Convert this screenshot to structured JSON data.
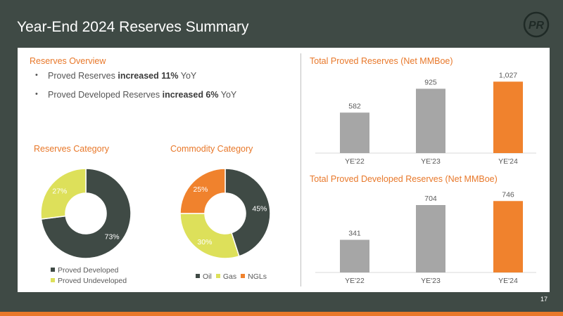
{
  "header": {
    "title": "Year-End 2024 Reserves Summary"
  },
  "logo": {
    "text": "PR",
    "icon": "pr-logo-icon"
  },
  "overview": {
    "title": "Reserves Overview",
    "bullets": [
      {
        "pre": "Proved Reserves ",
        "bold": "increased 11%",
        "post": " YoY"
      },
      {
        "pre": "Proved Developed Reserves ",
        "bold": "increased 6%",
        "post": " YoY"
      }
    ]
  },
  "page_number": "17",
  "colors": {
    "dark": "#3f4a45",
    "yellow": "#dde05a",
    "orange": "#f0822d",
    "gray": "#a6a6a6"
  },
  "chart_data": [
    {
      "type": "pie",
      "title": "Reserves Category",
      "slices": [
        {
          "name": "Proved Developed",
          "value": 73,
          "label": "73%",
          "color": "#3f4a45",
          "label_color": "#ffffff"
        },
        {
          "name": "Proved Undeveloped",
          "value": 27,
          "label": "27%",
          "color": "#dde05a",
          "label_color": "#ffffff"
        }
      ],
      "legend": "bottom"
    },
    {
      "type": "pie",
      "title": "Commodity Category",
      "slices": [
        {
          "name": "Oil",
          "value": 45,
          "label": "45%",
          "color": "#3f4a45",
          "label_color": "#ffffff"
        },
        {
          "name": "Gas",
          "value": 30,
          "label": "30%",
          "color": "#dde05a",
          "label_color": "#ffffff"
        },
        {
          "name": "NGLs",
          "value": 25,
          "label": "25%",
          "color": "#f0822d",
          "label_color": "#ffffff"
        }
      ],
      "legend": "bottom"
    },
    {
      "type": "bar",
      "title": "Total Proved Reserves (Net MMBoe)",
      "categories": [
        "YE'22",
        "YE'23",
        "YE'24"
      ],
      "values": [
        582,
        925,
        1027
      ],
      "data_labels": [
        "582",
        "925",
        "1,027"
      ],
      "colors": [
        "#a6a6a6",
        "#a6a6a6",
        "#f0822d"
      ],
      "ylim": [
        0,
        1060
      ],
      "grid": false
    },
    {
      "type": "bar",
      "title": "Total Proved Developed Reserves (Net MMBoe)",
      "categories": [
        "YE'22",
        "YE'23",
        "YE'24"
      ],
      "values": [
        341,
        704,
        746
      ],
      "data_labels": [
        "341",
        "704",
        "746"
      ],
      "colors": [
        "#a6a6a6",
        "#a6a6a6",
        "#f0822d"
      ],
      "ylim": [
        0,
        770
      ],
      "grid": false
    }
  ]
}
